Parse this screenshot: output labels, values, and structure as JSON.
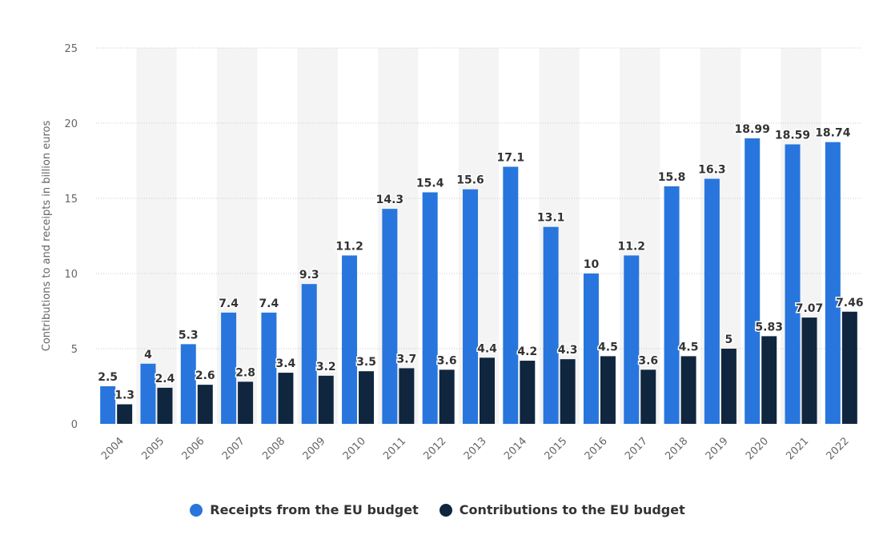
{
  "chart_data": {
    "type": "bar",
    "ylabel": "Contributions to and receipts in billion euros",
    "ylim": [
      0,
      25
    ],
    "yticks": [
      0,
      5,
      10,
      15,
      20,
      25
    ],
    "grid": true,
    "legend_position": "bottom-center",
    "categories": [
      "2004",
      "2005",
      "2006",
      "2007",
      "2008",
      "2009",
      "2010",
      "2011",
      "2012",
      "2013",
      "2014",
      "2015",
      "2016",
      "2017",
      "2018",
      "2019",
      "2020",
      "2021",
      "2022"
    ],
    "series": [
      {
        "name": "Receipts from the EU budget",
        "color": "#2876dd",
        "values": [
          2.5,
          4,
          5.3,
          7.4,
          7.4,
          9.3,
          11.2,
          14.3,
          15.4,
          15.6,
          17.1,
          13.1,
          10,
          11.2,
          15.8,
          16.3,
          18.99,
          18.59,
          18.74
        ],
        "labels": [
          "2.5",
          "4",
          "5.3",
          "7.4",
          "7.4",
          "9.3",
          "11.2",
          "14.3",
          "15.4",
          "15.6",
          "17.1",
          "13.1",
          "10",
          "11.2",
          "15.8",
          "16.3",
          "18.99",
          "18.59",
          "18.74"
        ]
      },
      {
        "name": "Contributions to the EU budget",
        "color": "#10263f",
        "values": [
          1.3,
          2.4,
          2.6,
          2.8,
          3.4,
          3.2,
          3.5,
          3.7,
          3.6,
          4.4,
          4.2,
          4.3,
          4.5,
          3.6,
          4.5,
          5,
          5.83,
          7.07,
          7.46
        ],
        "labels": [
          "1.3",
          "2.4",
          "2.6",
          "2.8",
          "3.4",
          "3.2",
          "3.5",
          "3.7",
          "3.6",
          "4.4",
          "4.2",
          "4.3",
          "4.5",
          "3.6",
          "4.5",
          "5",
          "5.83",
          "7.07",
          "7.46"
        ]
      }
    ]
  },
  "legend": {
    "items": [
      {
        "label": "Receipts from the EU budget",
        "color": "#2876dd"
      },
      {
        "label": "Contributions to the EU budget",
        "color": "#10263f"
      }
    ]
  }
}
